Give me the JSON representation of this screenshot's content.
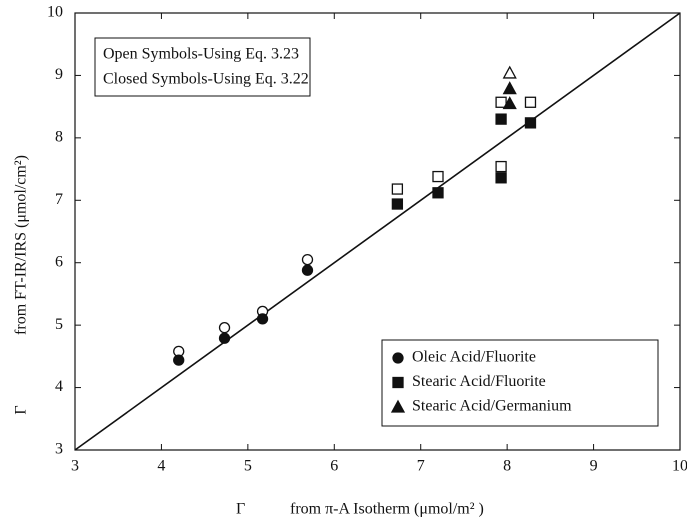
{
  "chart_data": {
    "type": "scatter",
    "x_symbol": "Γ",
    "x_label": "from π-A Isotherm (μmol/m² )",
    "y_symbol": "Γ",
    "y_label": "from FT-IR/IRS (μmol/cm²)",
    "annotations": [
      "Open Symbols-Using Eq. 3.23",
      "Closed Symbols-Using Eq. 3.22"
    ],
    "xlim": [
      3,
      10
    ],
    "ylim": [
      3,
      10
    ],
    "xticks": [
      3,
      4,
      5,
      6,
      7,
      8,
      9,
      10
    ],
    "yticks": [
      3,
      4,
      5,
      6,
      7,
      8,
      9,
      10
    ],
    "reference_line": {
      "x": [
        3,
        10
      ],
      "y": [
        3,
        10
      ]
    },
    "color": "#111111",
    "series": [
      {
        "name": "Oleic Acid/Fluorite",
        "marker": "circle",
        "closed": {
          "x": [
            4.2,
            4.73,
            5.17,
            5.69
          ],
          "values": [
            4.44,
            4.79,
            5.1,
            5.88
          ]
        },
        "open": {
          "x": [
            4.2,
            4.73,
            5.17,
            5.69
          ],
          "values": [
            4.58,
            4.96,
            5.22,
            6.05
          ]
        }
      },
      {
        "name": "Stearic Acid/Fluorite",
        "marker": "square",
        "closed": {
          "x": [
            6.73,
            7.2,
            7.93,
            7.93,
            8.27
          ],
          "values": [
            6.94,
            7.12,
            8.3,
            7.36,
            8.24
          ]
        },
        "open": {
          "x": [
            6.73,
            7.2,
            7.93,
            7.93,
            8.27
          ],
          "values": [
            7.18,
            7.38,
            8.57,
            7.54,
            8.57
          ]
        }
      },
      {
        "name": "Stearic Acid/Germanium",
        "marker": "triangle",
        "closed": {
          "x": [
            8.03,
            8.03
          ],
          "values": [
            8.79,
            8.55
          ]
        },
        "open": {
          "x": [
            8.03
          ],
          "values": [
            9.04
          ]
        }
      }
    ]
  }
}
